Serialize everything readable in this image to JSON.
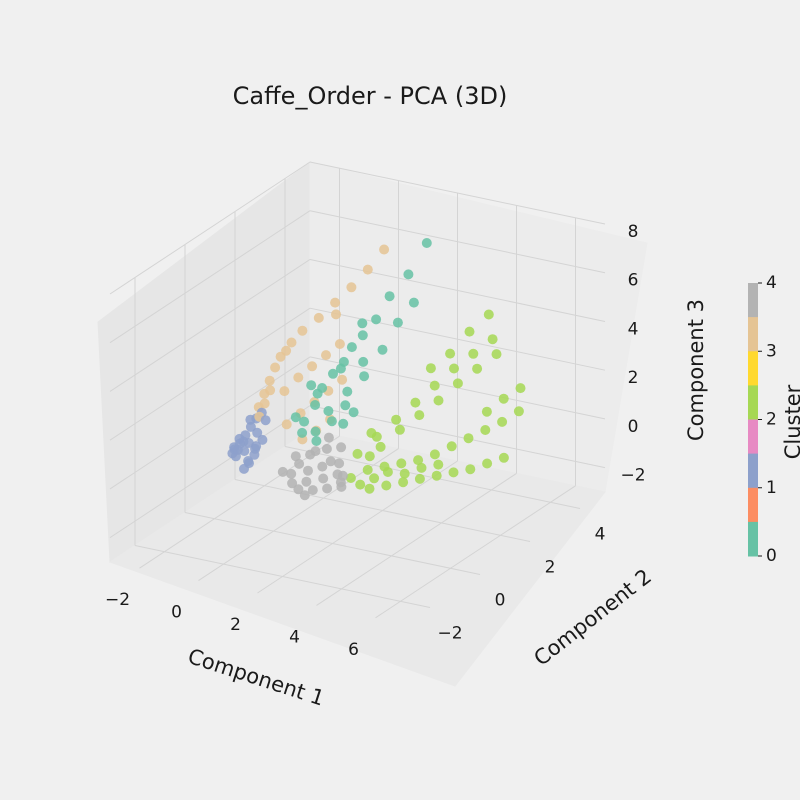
{
  "chart_data": {
    "type": "scatter",
    "title": "Caffe_Order - PCA (3D)",
    "xlabel": "Component 1",
    "ylabel": "Component 2",
    "zlabel": "Component 3",
    "xlim": [
      -3,
      7
    ],
    "ylim": [
      -3,
      5
    ],
    "zlim": [
      -3,
      8
    ],
    "x_ticks": [
      "-2",
      "0",
      "2",
      "4",
      "6"
    ],
    "y_ticks": [
      "-2",
      "0",
      "2",
      "4"
    ],
    "z_ticks": [
      "-2",
      "0",
      "2",
      "4",
      "6",
      "8"
    ],
    "grid": true,
    "colorbar": {
      "label": "Cluster",
      "ticks": [
        "0",
        "1",
        "2",
        "3",
        "4"
      ],
      "colors": [
        "#66c2a5",
        "#fc8d62",
        "#8da0cb",
        "#e78ac3",
        "#a6d854",
        "#ffd92f",
        "#e5c494",
        "#b3b3b3"
      ]
    },
    "cluster_colors": {
      "0": "#66c2a5",
      "1": "#8da0cb",
      "2": "#a6d854",
      "3": "#e5c494",
      "4": "#b3b3b3"
    },
    "series": [
      {
        "cluster": 0,
        "points": [
          [
            0.6,
            0.8,
            2.6
          ],
          [
            0.8,
            1.0,
            2.4
          ],
          [
            1.0,
            1.2,
            2.9
          ],
          [
            1.2,
            1.4,
            3.3
          ],
          [
            0.9,
            0.6,
            2.0
          ],
          [
            1.3,
            1.6,
            3.8
          ],
          [
            1.5,
            1.8,
            4.2
          ],
          [
            1.7,
            2.1,
            4.7
          ],
          [
            1.1,
            0.9,
            1.6
          ],
          [
            1.4,
            1.3,
            2.2
          ],
          [
            1.6,
            1.7,
            3.2
          ],
          [
            0.7,
            0.4,
            1.4
          ],
          [
            1.9,
            2.4,
            5.5
          ],
          [
            2.2,
            2.8,
            6.2
          ],
          [
            1.8,
            1.5,
            2.8
          ],
          [
            1.0,
            0.5,
            1.0
          ],
          [
            1.3,
            0.8,
            1.3
          ],
          [
            2.4,
            3.3,
            7.2
          ],
          [
            2.0,
            2.0,
            3.6
          ],
          [
            1.5,
            1.1,
            1.8
          ],
          [
            0.8,
            0.2,
            1.1
          ],
          [
            2.1,
            2.5,
            4.4
          ],
          [
            1.2,
            0.3,
            0.8
          ],
          [
            1.6,
            0.9,
            1.2
          ],
          [
            2.3,
            2.9,
            5.0
          ],
          [
            0.9,
            0.7,
            2.4
          ],
          [
            1.4,
            1.9,
            4.6
          ],
          [
            1.1,
            1.4,
            3.0
          ],
          [
            0.5,
            0.3,
            1.6
          ],
          [
            1.7,
            1.2,
            1.5
          ]
        ]
      },
      {
        "cluster": 1,
        "points": [
          [
            -2.0,
            0.8,
            -0.7
          ],
          [
            -1.9,
            0.9,
            -0.5
          ],
          [
            -1.8,
            1.0,
            -0.2
          ],
          [
            -1.7,
            1.1,
            0.1
          ],
          [
            -1.6,
            1.2,
            0.4
          ],
          [
            -1.8,
            0.7,
            -0.6
          ],
          [
            -2.1,
            0.9,
            -0.7
          ],
          [
            -1.7,
            0.8,
            -0.3
          ],
          [
            -1.5,
            1.3,
            0.6
          ],
          [
            -1.9,
            0.6,
            -0.7
          ],
          [
            -1.6,
            0.9,
            -0.4
          ],
          [
            -1.4,
            1.0,
            0.0
          ],
          [
            -1.3,
            0.8,
            -0.5
          ],
          [
            -1.2,
            0.4,
            -0.7
          ],
          [
            -1.0,
            0.2,
            -0.6
          ],
          [
            -0.9,
            0.3,
            -0.3
          ],
          [
            -1.1,
            0.6,
            -0.2
          ],
          [
            -2.0,
            1.0,
            -0.4
          ],
          [
            -1.7,
            0.5,
            -0.7
          ],
          [
            -1.5,
            0.6,
            -0.5
          ],
          [
            -0.8,
            0.5,
            0.2
          ],
          [
            -1.2,
            1.1,
            0.5
          ],
          [
            -1.0,
            0.0,
            -0.7
          ],
          [
            -1.8,
            1.2,
            0.3
          ]
        ]
      },
      {
        "cluster": 2,
        "points": [
          [
            2.0,
            1.0,
            0.0
          ],
          [
            2.4,
            1.3,
            0.6
          ],
          [
            2.8,
            1.6,
            1.2
          ],
          [
            3.2,
            1.9,
            1.8
          ],
          [
            3.6,
            2.2,
            2.4
          ],
          [
            4.0,
            2.5,
            3.0
          ],
          [
            4.4,
            2.8,
            3.5
          ],
          [
            4.8,
            3.1,
            4.0
          ],
          [
            2.6,
            0.7,
            -0.3
          ],
          [
            3.0,
            0.9,
            -0.2
          ],
          [
            3.4,
            1.1,
            -0.1
          ],
          [
            3.8,
            1.3,
            0.0
          ],
          [
            4.2,
            1.5,
            0.2
          ],
          [
            4.6,
            1.7,
            0.5
          ],
          [
            5.0,
            1.9,
            0.8
          ],
          [
            5.4,
            2.1,
            1.1
          ],
          [
            5.8,
            2.3,
            1.4
          ],
          [
            6.2,
            2.5,
            1.8
          ],
          [
            2.2,
            0.5,
            -0.6
          ],
          [
            2.6,
            0.4,
            -0.7
          ],
          [
            3.0,
            0.3,
            -0.7
          ],
          [
            3.4,
            0.5,
            -0.6
          ],
          [
            3.8,
            0.7,
            -0.5
          ],
          [
            4.2,
            0.9,
            -0.4
          ],
          [
            4.6,
            1.1,
            -0.3
          ],
          [
            5.0,
            1.3,
            -0.2
          ],
          [
            5.4,
            1.5,
            -0.1
          ],
          [
            5.8,
            1.7,
            0.1
          ],
          [
            6.2,
            1.9,
            0.3
          ],
          [
            3.1,
            1.4,
            1.0
          ],
          [
            3.5,
            1.7,
            1.5
          ],
          [
            3.9,
            2.0,
            2.0
          ],
          [
            4.3,
            2.3,
            2.6
          ],
          [
            4.7,
            2.6,
            3.1
          ],
          [
            5.1,
            2.9,
            3.6
          ],
          [
            2.7,
            1.1,
            0.4
          ],
          [
            3.3,
            2.4,
            2.9
          ],
          [
            3.7,
            2.7,
            3.4
          ],
          [
            4.1,
            3.0,
            4.2
          ],
          [
            4.5,
            3.3,
            4.8
          ],
          [
            2.9,
            0.6,
            -0.5
          ],
          [
            3.2,
            0.8,
            -0.3
          ],
          [
            3.6,
            1.0,
            -0.4
          ],
          [
            4.0,
            1.2,
            -0.2
          ],
          [
            4.4,
            1.4,
            -0.1
          ],
          [
            2.5,
            0.9,
            0.1
          ],
          [
            2.3,
            1.2,
            0.8
          ],
          [
            5.6,
            2.6,
            2.1
          ],
          [
            6.0,
            2.8,
            2.5
          ],
          [
            5.2,
            2.4,
            1.6
          ]
        ]
      },
      {
        "cluster": 3,
        "points": [
          [
            -1.6,
            1.3,
            0.8
          ],
          [
            -1.5,
            1.4,
            1.3
          ],
          [
            -1.4,
            1.5,
            1.8
          ],
          [
            -1.3,
            1.6,
            2.3
          ],
          [
            -1.2,
            1.7,
            2.7
          ],
          [
            -1.5,
            1.2,
            0.5
          ],
          [
            -1.4,
            1.3,
            1.0
          ],
          [
            -1.3,
            1.4,
            1.5
          ],
          [
            -1.0,
            1.9,
            3.2
          ],
          [
            -0.8,
            2.1,
            3.6
          ],
          [
            -0.5,
            2.4,
            4.0
          ],
          [
            -0.2,
            2.7,
            4.5
          ],
          [
            0.1,
            3.0,
            5.0
          ],
          [
            0.4,
            3.3,
            5.6
          ],
          [
            0.7,
            3.6,
            6.3
          ],
          [
            -0.9,
            1.5,
            1.5
          ],
          [
            -0.6,
            1.7,
            2.0
          ],
          [
            -0.3,
            1.9,
            2.4
          ],
          [
            0.0,
            2.1,
            2.8
          ],
          [
            0.3,
            2.3,
            3.2
          ],
          [
            -0.4,
            1.0,
            0.6
          ],
          [
            -0.1,
            1.2,
            1.0
          ],
          [
            0.2,
            1.4,
            1.4
          ],
          [
            0.5,
            1.6,
            1.8
          ],
          [
            0.8,
            1.8,
            2.2
          ],
          [
            0.3,
            0.8,
            0.3
          ],
          [
            0.6,
            1.0,
            0.6
          ],
          [
            0.9,
            1.2,
            1.0
          ],
          [
            -1.1,
            1.8,
            2.9
          ],
          [
            0.0,
            2.5,
            4.2
          ]
        ]
      },
      {
        "cluster": 4,
        "points": [
          [
            0.6,
            0.0,
            -0.5
          ],
          [
            1.0,
            0.2,
            -0.4
          ],
          [
            1.4,
            0.3,
            -0.2
          ],
          [
            1.8,
            0.5,
            -0.1
          ],
          [
            0.8,
            -0.2,
            -0.7
          ],
          [
            1.2,
            -0.1,
            -0.6
          ],
          [
            1.6,
            0.1,
            -0.5
          ],
          [
            2.0,
            0.2,
            -0.3
          ],
          [
            0.9,
            0.4,
            0.1
          ],
          [
            1.3,
            0.6,
            0.3
          ],
          [
            1.7,
            0.7,
            0.4
          ],
          [
            1.1,
            -0.3,
            -0.8
          ],
          [
            1.5,
            -0.2,
            -0.8
          ],
          [
            1.9,
            -0.1,
            -0.7
          ],
          [
            2.3,
            0.0,
            -0.6
          ],
          [
            0.7,
            0.2,
            -0.2
          ],
          [
            1.0,
            0.5,
            0.2
          ],
          [
            1.4,
            -0.4,
            -0.9
          ],
          [
            2.1,
            0.3,
            -0.4
          ],
          [
            0.5,
            0.3,
            0.0
          ],
          [
            1.6,
            0.4,
            0.0
          ],
          [
            2.2,
            0.1,
            -0.5
          ],
          [
            0.4,
            -0.1,
            -0.4
          ],
          [
            1.2,
            0.8,
            0.6
          ]
        ]
      }
    ]
  }
}
